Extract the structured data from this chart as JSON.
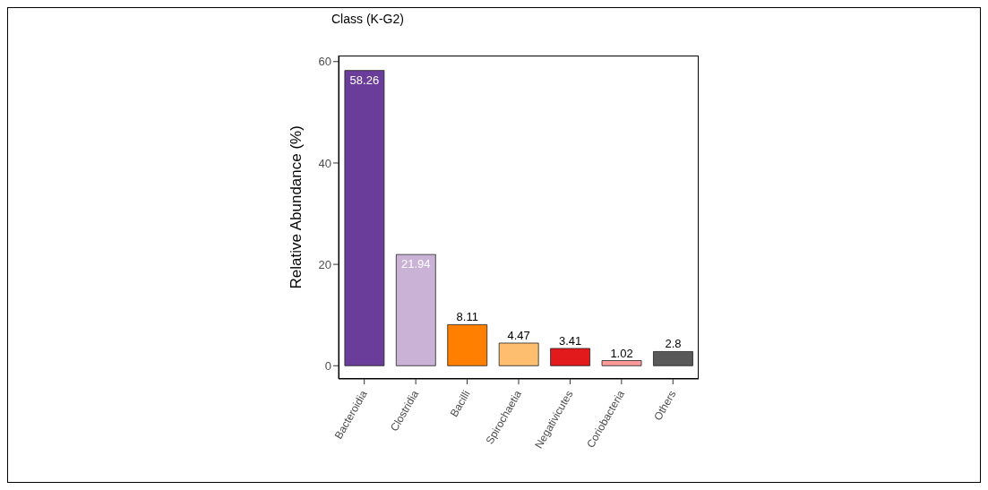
{
  "chart_data": {
    "type": "bar",
    "title": "Class (K-G2)",
    "ylabel": "Relative Abundance (%)",
    "categories": [
      "Bacteroidia",
      "Clostridia",
      "Bacilli",
      "Spirochaetia",
      "Negativicutes",
      "Coriobacteria",
      "Others"
    ],
    "values": [
      58.26,
      21.94,
      8.11,
      4.47,
      3.41,
      1.02,
      2.8
    ],
    "colors": [
      "#6a3d9a",
      "#cab2d6",
      "#ff7f00",
      "#fdbf6f",
      "#e31a1c",
      "#fb9a99",
      "#595959"
    ],
    "ylim": [
      -2.6,
      61.2
    ],
    "yticks": [
      0,
      20,
      40,
      60
    ],
    "data_labels": true,
    "grid": false,
    "legend": false
  }
}
